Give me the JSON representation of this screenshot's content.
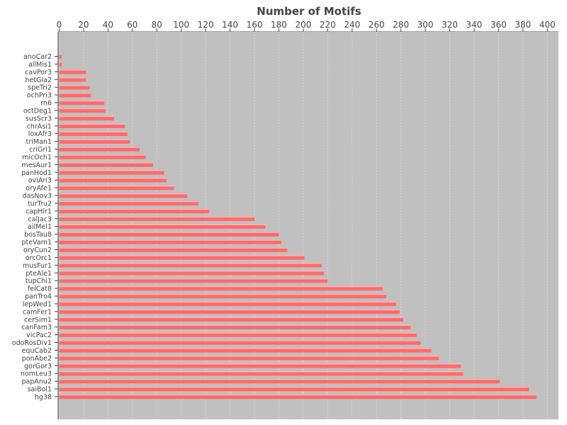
{
  "chart_data": {
    "type": "bar",
    "orientation": "horizontal",
    "title": "Number of Motifs",
    "xlabel": "",
    "ylabel": "",
    "xlim": [
      0,
      410
    ],
    "x_ticks": [
      0,
      20,
      40,
      60,
      80,
      100,
      120,
      140,
      160,
      180,
      200,
      220,
      240,
      260,
      280,
      300,
      320,
      340,
      360,
      380,
      400
    ],
    "x_axis_position": "top",
    "grid": true,
    "legend": "none",
    "colors": {
      "plot_background": "#c0c0c0",
      "bar_fill": "#ff6b6b",
      "bar_highlight": "#ffb3b3",
      "gridline": "#d8d8d8",
      "axis_text": "#444444"
    },
    "categories": [
      "anoCar2",
      "allMis1",
      "cavPor3",
      "hetGla2",
      "speTri2",
      "ochPri3",
      "rn6",
      "octDeg1",
      "susScr3",
      "chrAsi1",
      "loxAfr3",
      "triMan1",
      "criGri1",
      "micOch1",
      "mesAur1",
      "panHod1",
      "oviAri3",
      "oryAfe1",
      "dasNov3",
      "turTru2",
      "capHir1",
      "calJac3",
      "ailMel1",
      "bosTau8",
      "pteVam1",
      "oryCun2",
      "orcOrc1",
      "musFur1",
      "pteAle1",
      "tupChi1",
      "felCat8",
      "panTro4",
      "lepWed1",
      "camFer1",
      "cerSim1",
      "canFam3",
      "vicPac2",
      "odoRosDiv1",
      "equCab2",
      "ponAbe2",
      "gorGor3",
      "nomLeu3",
      "papAnu2",
      "saiBol1",
      "hg38"
    ],
    "values": [
      2,
      2,
      22,
      22,
      25,
      26,
      37,
      38,
      45,
      54,
      56,
      58,
      66,
      71,
      77,
      86,
      88,
      94,
      105,
      114,
      123,
      160,
      169,
      180,
      182,
      187,
      201,
      215,
      217,
      220,
      265,
      268,
      276,
      279,
      282,
      288,
      293,
      296,
      305,
      311,
      329,
      331,
      361,
      385,
      391
    ]
  }
}
